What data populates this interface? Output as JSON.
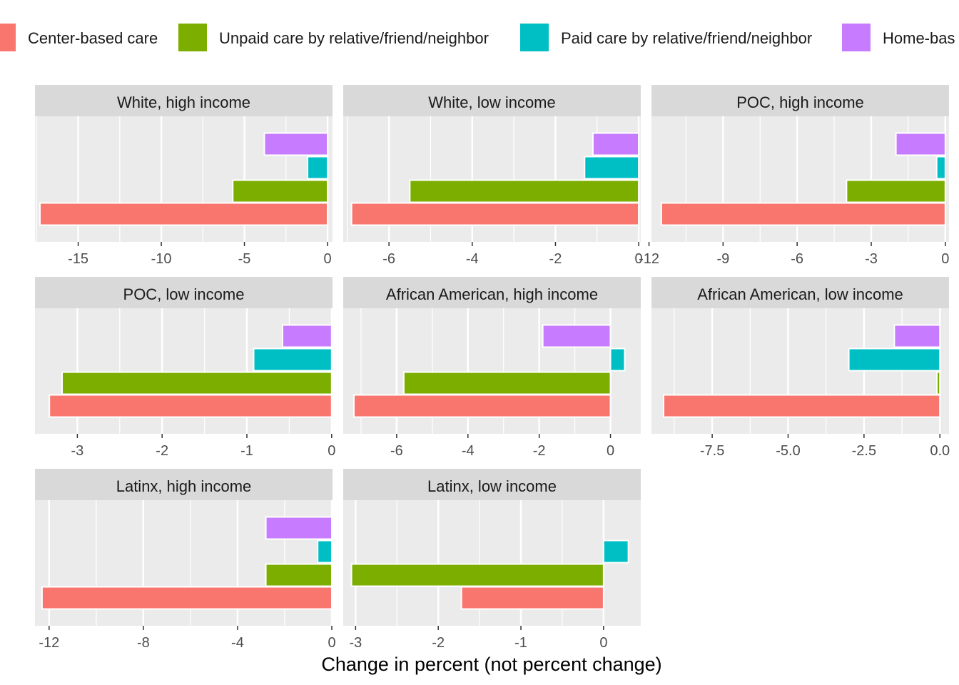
{
  "chart_data": {
    "type": "bar",
    "orientation": "horizontal",
    "xlabel": "Change in percent (not percent change)",
    "ylabel": "",
    "grid": true,
    "legend_position": "top",
    "series": [
      {
        "name": "Center-based care",
        "color": "#F8766D"
      },
      {
        "name": "Unpaid care by relative/friend/neighbor",
        "color": "#7CAE00"
      },
      {
        "name": "Paid care by relative/friend/neighbor",
        "color": "#00BFC4"
      },
      {
        "name": "Home-bas",
        "color": "#C77CFF"
      }
    ],
    "panels": [
      {
        "title": "White, high income",
        "xlim": [
          -17.6,
          0.3
        ],
        "ticks": [
          -15,
          -10,
          -5,
          0
        ],
        "tick_labels": [
          "-15",
          "-10",
          "-5",
          "0"
        ],
        "values": [
          -17.3,
          -5.7,
          -1.2,
          -3.8
        ]
      },
      {
        "title": "White, low income",
        "xlim": [
          -7.1,
          0.05
        ],
        "ticks": [
          -6,
          -4,
          -2,
          0
        ],
        "tick_labels": [
          "-6",
          "-4",
          "-2",
          "0"
        ],
        "values": [
          -6.9,
          -5.5,
          -1.3,
          -1.1
        ]
      },
      {
        "title": "POC, high income",
        "xlim": [
          -11.9,
          0.15
        ],
        "ticks": [
          -12,
          -9,
          -6,
          -3,
          0
        ],
        "tick_labels": [
          "-12",
          "-9",
          "-6",
          "-3",
          "0"
        ],
        "values": [
          -11.5,
          -4.0,
          -0.35,
          -2.0
        ]
      },
      {
        "title": "POC, low income",
        "xlim": [
          -3.5,
          0.01
        ],
        "ticks": [
          -3,
          -2,
          -1,
          0
        ],
        "tick_labels": [
          "-3",
          "-2",
          "-1",
          "0"
        ],
        "values": [
          -3.33,
          -3.18,
          -0.92,
          -0.58
        ]
      },
      {
        "title": "African American, high income",
        "xlim": [
          -7.5,
          0.85
        ],
        "ticks": [
          -6,
          -4,
          -2,
          0
        ],
        "tick_labels": [
          "-6",
          "-4",
          "-2",
          "0"
        ],
        "values": [
          -7.2,
          -5.8,
          0.4,
          -1.9
        ]
      },
      {
        "title": "African American, low income",
        "xlim": [
          -9.5,
          0.3
        ],
        "ticks": [
          -7.5,
          -5.0,
          -2.5,
          0.0
        ],
        "tick_labels": [
          "-7.5",
          "-5.0",
          "-2.5",
          "0.0"
        ],
        "values": [
          -9.1,
          -0.1,
          -3.0,
          -1.5
        ]
      },
      {
        "title": "Latinx, high income",
        "xlim": [
          -12.6,
          0.03
        ],
        "ticks": [
          -12,
          -8,
          -4,
          0
        ],
        "tick_labels": [
          "-12",
          "-8",
          "-4",
          "0"
        ],
        "values": [
          -12.3,
          -2.8,
          -0.6,
          -2.8
        ]
      },
      {
        "title": "Latinx, low income",
        "xlim": [
          -3.15,
          0.45
        ],
        "ticks": [
          -3,
          -2,
          -1,
          0
        ],
        "tick_labels": [
          "-3",
          "-2",
          "-1",
          "0"
        ],
        "values": [
          -1.72,
          -3.05,
          0.3,
          null
        ]
      }
    ]
  }
}
